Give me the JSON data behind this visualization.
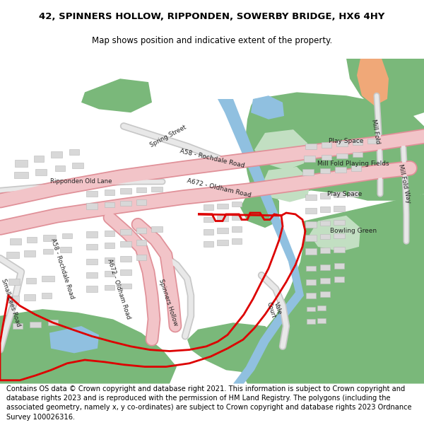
{
  "title_line1": "42, SPINNERS HOLLOW, RIPPONDEN, SOWERBY BRIDGE, HX6 4HY",
  "title_line2": "Map shows position and indicative extent of the property.",
  "footer": "Contains OS data © Crown copyright and database right 2021. This information is subject to Crown copyright and database rights 2023 and is reproduced with the permission of HM Land Registry. The polygons (including the associated geometry, namely x, y co-ordinates) are subject to Crown copyright and database rights 2023 Ordnance Survey 100026316.",
  "bg_color": "#ffffff",
  "map_bg": "#f0ede8",
  "green_dark": "#7ab87a",
  "green_mid": "#9bc89b",
  "green_light": "#c2dfc2",
  "road_pink_fill": "#f2c4c8",
  "road_pink_edge": "#e09098",
  "road_gray_fill": "#e8e8e8",
  "road_gray_edge": "#c8c8c8",
  "water_blue": "#90c0e0",
  "building_fill": "#d8d8d8",
  "building_edge": "#b8b8b8",
  "red_boundary": "#dd0000",
  "orange_road": "#f0a878"
}
